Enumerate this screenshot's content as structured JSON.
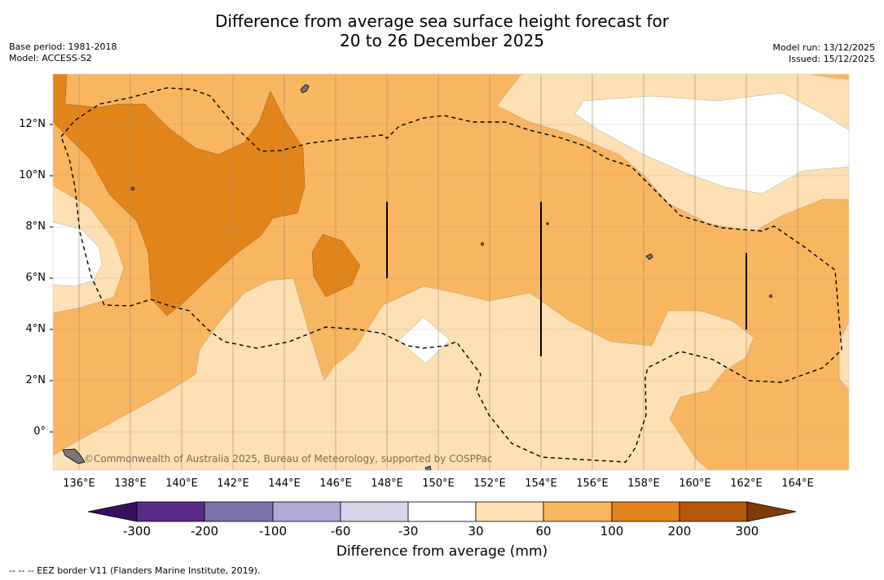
{
  "title_line1": "Difference from average sea surface height forecast for",
  "title_line2": "20 to 26 December 2025",
  "base_period": "Base period: 1981-2018",
  "model": "Model: ACCESS-S2",
  "model_run": "Model run: 13/12/2025",
  "issued": "Issued: 15/12/2025",
  "credit": "©Commonwealth of Australia 2025, Bureau of Meteorology, supported by COSPPac",
  "footnote": "--  --  -- EEZ border V11 (Flanders Marine Institute, 2019).",
  "colorbar_title": "Difference from average (mm)",
  "x_ticks": [
    "136°E",
    "138°E",
    "140°E",
    "142°E",
    "144°E",
    "146°E",
    "148°E",
    "150°E",
    "152°E",
    "154°E",
    "156°E",
    "158°E",
    "160°E",
    "162°E",
    "164°E"
  ],
  "y_ticks": [
    "12°N",
    "10°N",
    "8°N",
    "6°N",
    "4°N",
    "2°N",
    "0°"
  ],
  "colorbar_labels": [
    "-300",
    "-200",
    "-100",
    "-60",
    "-30",
    "30",
    "60",
    "100",
    "200",
    "300"
  ],
  "colors": {
    "c_300_200": "#3b0f5e",
    "c_200_100": "#5a2a8a",
    "c_100_60": "#7e70ad",
    "c_60_30": "#b0aad4",
    "c_30_m30": "#d6d6ea",
    "c_neutral": "#ffffff",
    "c_30_60": "#fde0b3",
    "c_60_100": "#f9b660",
    "c_100_200": "#e2841a",
    "c_200_300": "#b35a0c",
    "c_over": "#7f3b08"
  }
}
